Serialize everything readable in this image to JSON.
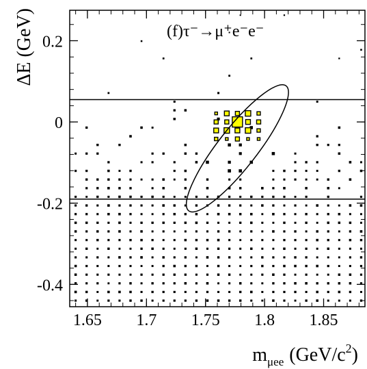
{
  "chart_data": {
    "type": "heatmap",
    "title": "(f)τ⁻→μ⁺e⁻e⁻",
    "xlabel": {
      "main": "m",
      "sub": "μee",
      "unit": "(GeV/c",
      "sup": "2",
      "close": ")"
    },
    "ylabel": "ΔE (GeV)",
    "xlim": [
      1.635,
      1.885
    ],
    "ylim": [
      -0.455,
      0.275
    ],
    "x_ticks": [
      1.65,
      1.7,
      1.75,
      1.8,
      1.85
    ],
    "x_tick_labels": [
      "1.65",
      "1.7",
      "1.75",
      "1.8",
      "1.85"
    ],
    "y_ticks": [
      0.2,
      0,
      -0.2,
      -0.4
    ],
    "y_tick_labels": [
      "0.2",
      "0",
      "-0.2",
      "-0.4"
    ],
    "grid": false,
    "band_lines_y": [
      0.055,
      -0.19
    ],
    "signal_ellipse": {
      "center_x": 1.777,
      "center_y": -0.065,
      "semi_major_gev": 0.067,
      "semi_minor_gev": 0.048,
      "rotation_deg": 52
    },
    "signal_peak": {
      "x": 1.777,
      "y": 0.0,
      "color": "#ffff00"
    },
    "histogram_bins": {
      "x_start": 1.64,
      "x_step": 0.0093,
      "x_count": 27,
      "y_start": -0.44,
      "y_step": 0.0213,
      "y_count": 34
    }
  }
}
